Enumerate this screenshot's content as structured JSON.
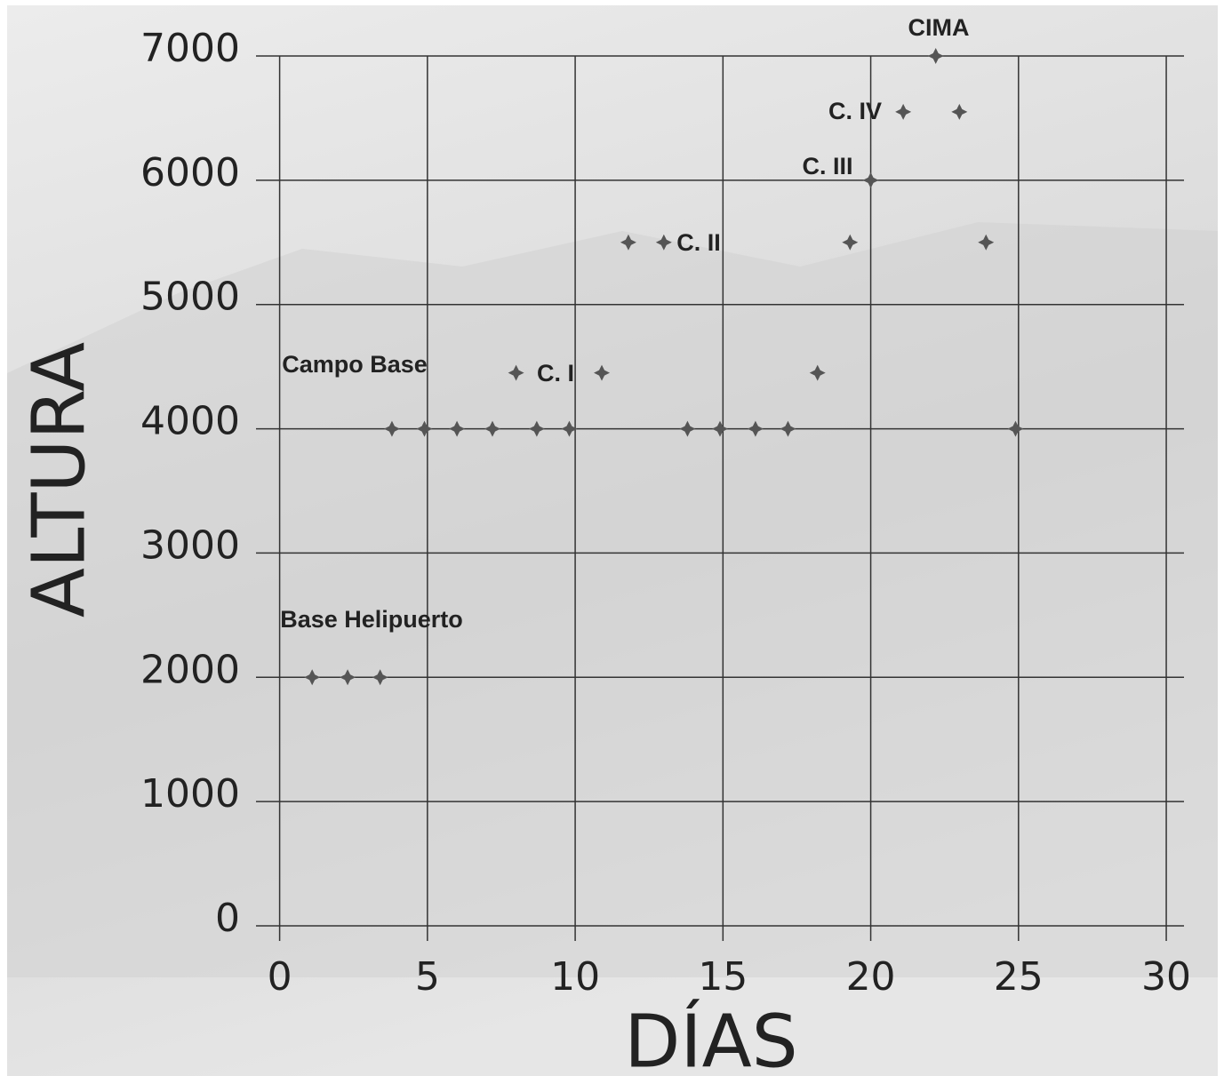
{
  "chart_data": {
    "type": "scatter",
    "x_label": "DÍAS",
    "y_label": "ALTURA",
    "x": [
      1.1,
      2.3,
      3.4,
      3.8,
      4.9,
      6.0,
      7.2,
      8.7,
      9.8,
      13.8,
      14.9,
      16.1,
      17.2,
      24.9,
      8.0,
      10.9,
      18.2,
      11.8,
      13.0,
      19.3,
      23.9,
      20.0,
      21.1,
      23.0,
      22.2
    ],
    "values": [
      2000,
      2000,
      2000,
      4000,
      4000,
      4000,
      4000,
      4000,
      4000,
      4000,
      4000,
      4000,
      4000,
      4000,
      4450,
      4450,
      4450,
      5500,
      5500,
      5500,
      5500,
      6000,
      6550,
      6550,
      7000
    ],
    "color": "#555555",
    "annotations": [
      "CIMA",
      "C. IV",
      "C. III",
      "C. II",
      "C. I",
      "Campo Base",
      "Base Helipuerto"
    ],
    "xlim": [
      -0.8,
      30.6
    ],
    "ylim": [
      0,
      7000
    ],
    "xticks": [
      0,
      5,
      10,
      15,
      20,
      25,
      30
    ],
    "yticks": [
      0,
      1000,
      2000,
      3000,
      4000,
      5000,
      6000,
      7000
    ],
    "grid": true
  }
}
